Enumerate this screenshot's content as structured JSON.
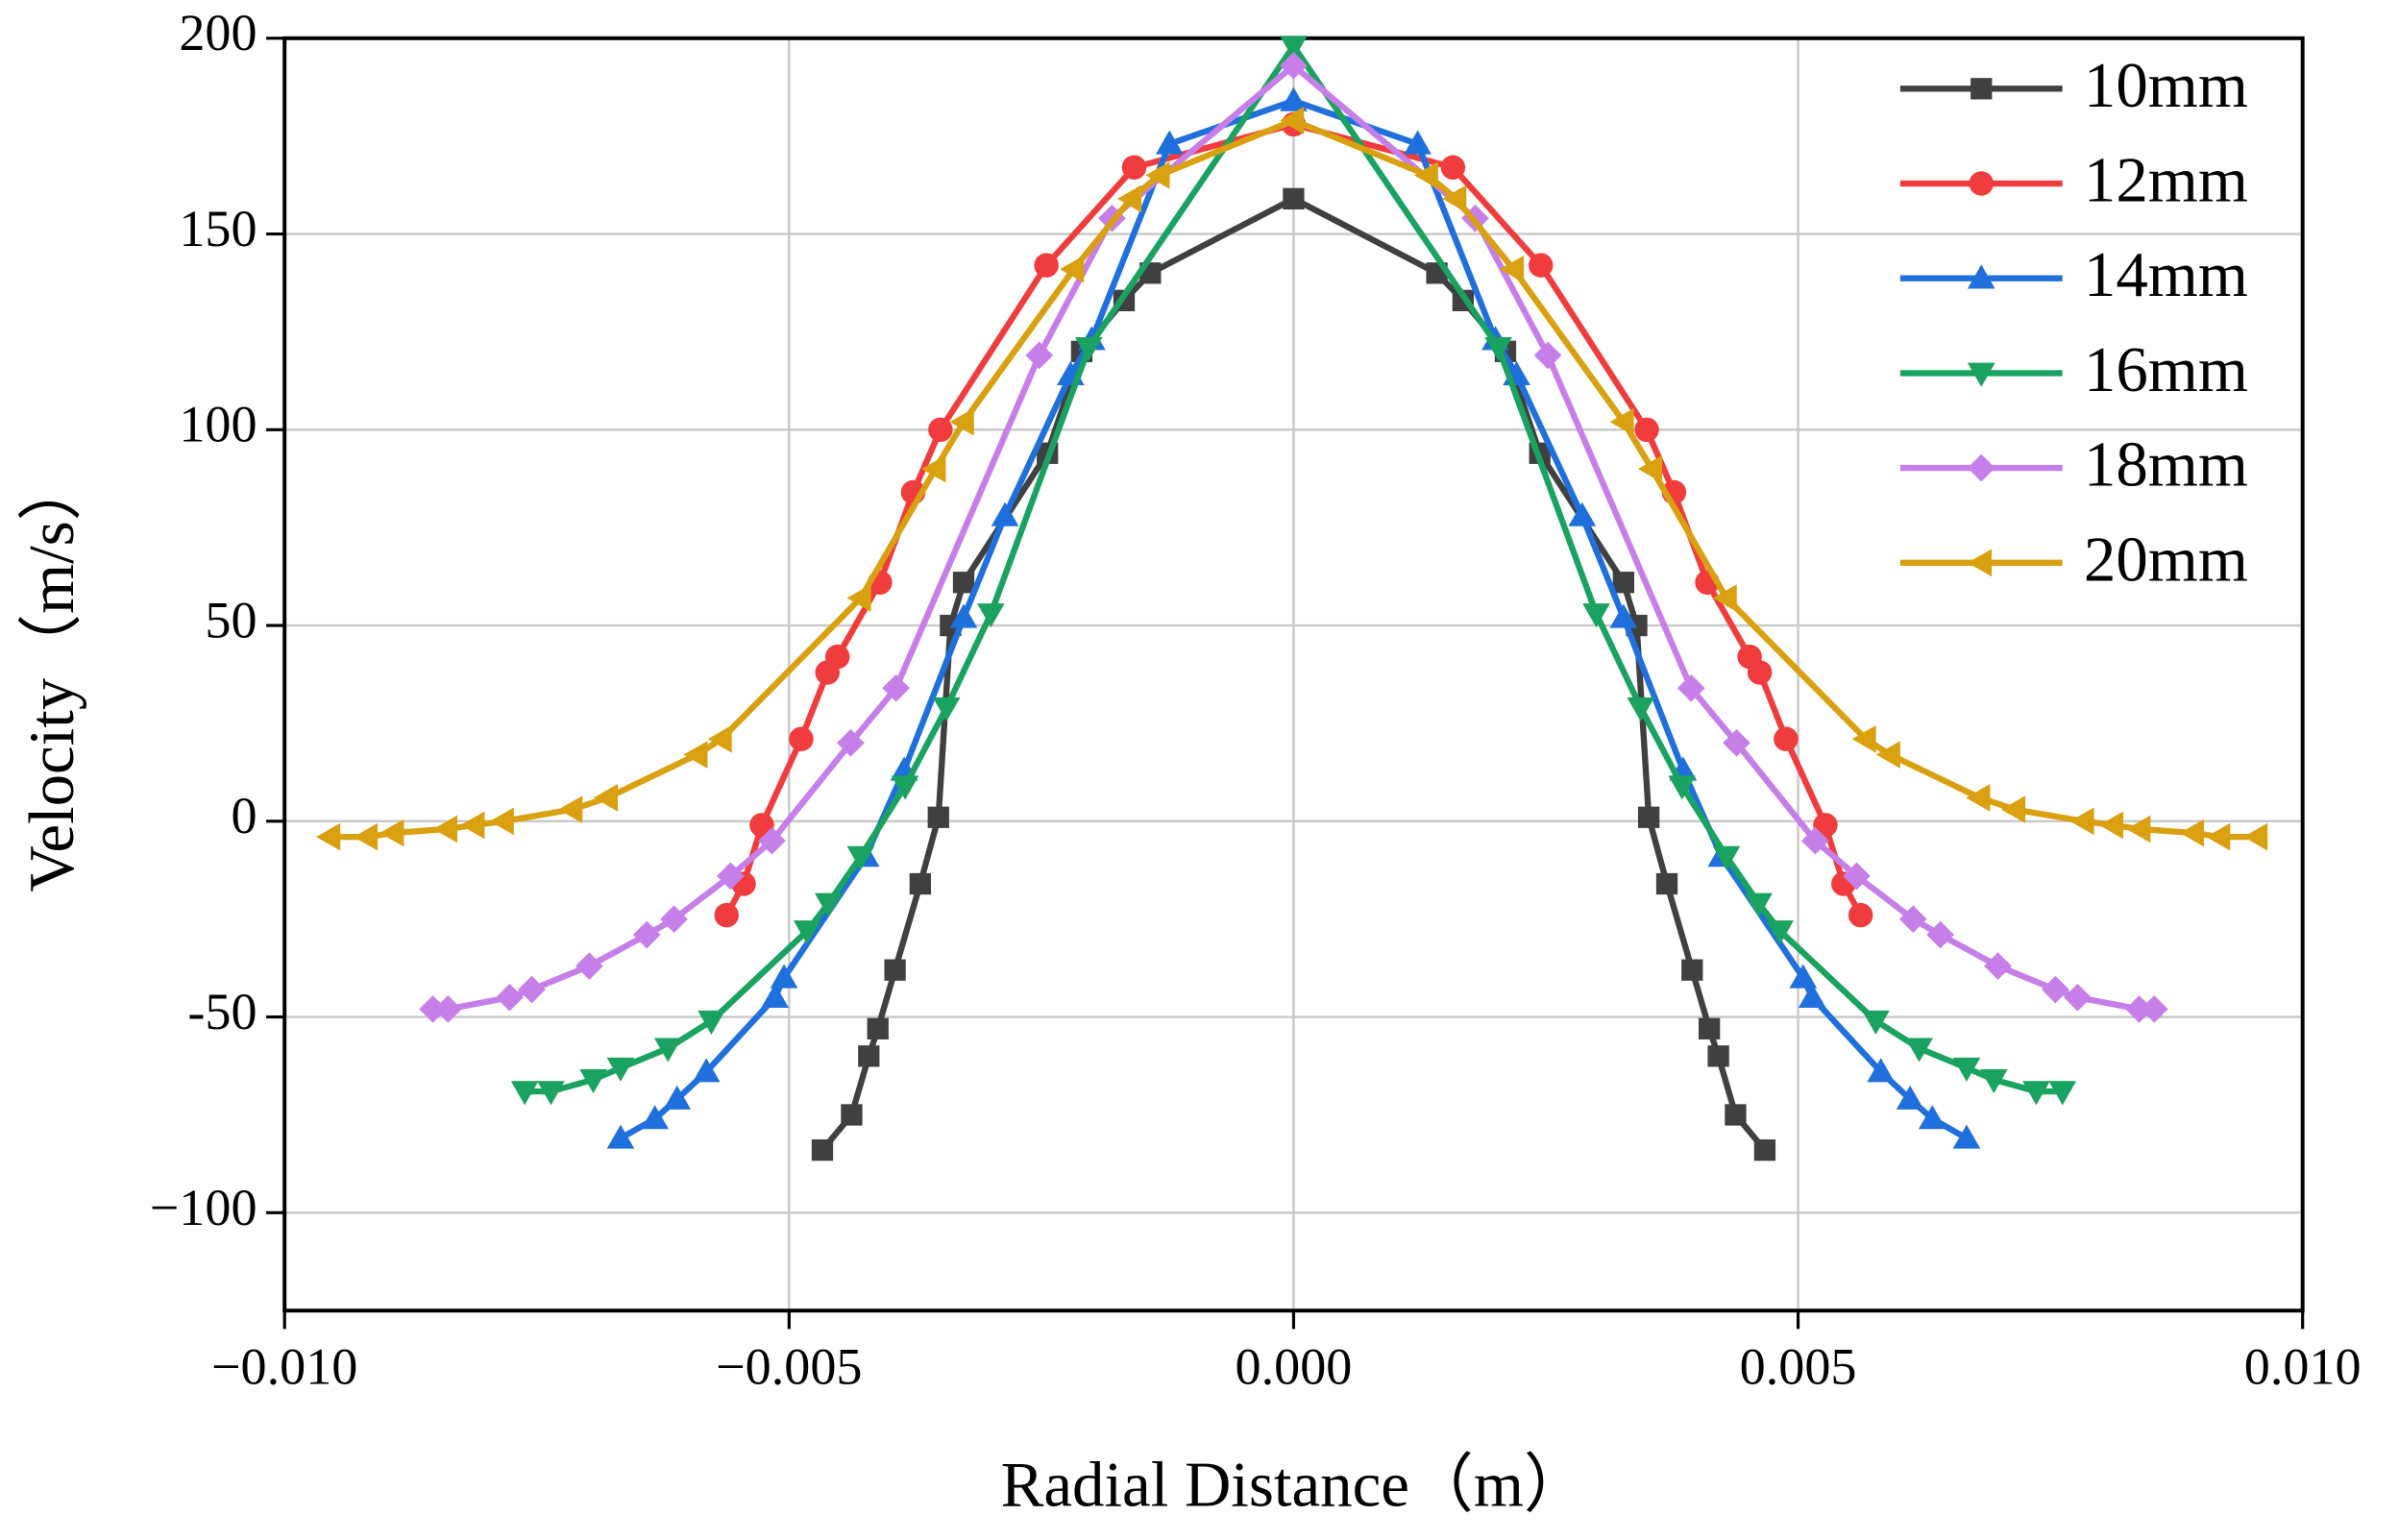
{
  "chart_data": {
    "type": "line",
    "x_label": "Radial Distance（m）",
    "y_label": "Velocity（m/s）",
    "xlim": [
      -0.01,
      0.01
    ],
    "ylim": [
      -125,
      200
    ],
    "xticks": [
      {
        "value": -0.01,
        "label": "−0.010"
      },
      {
        "value": -0.005,
        "label": "−0.005"
      },
      {
        "value": 0,
        "label": "0.000"
      },
      {
        "value": 0.005,
        "label": "0.005"
      },
      {
        "value": 0.01,
        "label": "0.010"
      }
    ],
    "yticks": [
      {
        "value": -100,
        "label": "−100"
      },
      -50,
      0,
      50,
      100,
      150,
      200
    ],
    "grid": true,
    "legend": "top-right",
    "series": [
      {
        "name": "10mm",
        "color": "#404040",
        "marker": "square",
        "x": [
          -0.00467,
          -0.00438,
          -0.00421,
          -0.00412,
          -0.00395,
          -0.0037,
          -0.00352,
          -0.0034,
          -0.00327,
          -0.00244,
          -0.0021,
          -0.00168,
          -0.00142,
          0,
          0.00142,
          0.00168,
          0.0021,
          0.00244,
          0.00327,
          0.0034,
          0.00352,
          0.0037,
          0.00395,
          0.00412,
          0.00421,
          0.00438,
          0.00467
        ],
        "values": [
          -84,
          -75,
          -60,
          -53,
          -38,
          -16,
          1,
          50,
          61,
          94,
          120,
          133,
          140,
          159,
          140,
          133,
          120,
          94,
          61,
          50,
          1,
          -16,
          -38,
          -53,
          -60,
          -75,
          -84
        ]
      },
      {
        "name": "12mm",
        "color": "#f03c3c",
        "marker": "circle",
        "x": [
          -0.00562,
          -0.00545,
          -0.00527,
          -0.00488,
          -0.00462,
          -0.00452,
          -0.0041,
          -0.00377,
          -0.0035,
          -0.00245,
          -0.00158,
          0,
          0.00158,
          0.00245,
          0.0035,
          0.00377,
          0.0041,
          0.00452,
          0.00462,
          0.00488,
          0.00527,
          0.00545,
          0.00562
        ],
        "values": [
          -24,
          -16,
          -1,
          21,
          38,
          42,
          61,
          84,
          100,
          142,
          167,
          178,
          167,
          142,
          100,
          84,
          61,
          42,
          38,
          21,
          -1,
          -16,
          -24
        ]
      },
      {
        "name": "14mm",
        "color": "#1f6fdc",
        "marker": "triangle-up",
        "x": [
          -0.00667,
          -0.00633,
          -0.00611,
          -0.00582,
          -0.00514,
          -0.00505,
          -0.00424,
          -0.00386,
          -0.00327,
          -0.00286,
          -0.00221,
          -0.002,
          -0.00123,
          0,
          0.00123,
          0.002,
          0.00221,
          0.00286,
          0.00327,
          0.00386,
          0.00424,
          0.00505,
          0.00514,
          0.00582,
          0.00611,
          0.00633,
          0.00667
        ],
        "values": [
          -81,
          -76,
          -71,
          -64,
          -45,
          -40,
          -9,
          13,
          52,
          78,
          114,
          123,
          173,
          184,
          173,
          123,
          114,
          78,
          52,
          13,
          -9,
          -40,
          -45,
          -64,
          -71,
          -76,
          -81
        ]
      },
      {
        "name": "16mm",
        "color": "#1aa260",
        "marker": "triangle-down",
        "x": [
          -0.00762,
          -0.00736,
          -0.00694,
          -0.00667,
          -0.0062,
          -0.00577,
          -0.00482,
          -0.00461,
          -0.00429,
          -0.00385,
          -0.00344,
          -0.003,
          -0.00203,
          0,
          0.00203,
          0.003,
          0.00344,
          0.00385,
          0.00429,
          0.00461,
          0.00482,
          0.00577,
          0.0062,
          0.00667,
          0.00694,
          0.00736,
          0.00762
        ],
        "values": [
          -69,
          -69,
          -66,
          -63,
          -58,
          -51,
          -28,
          -21,
          -9,
          9,
          29,
          53,
          121,
          198,
          121,
          53,
          29,
          9,
          -9,
          -21,
          -28,
          -51,
          -58,
          -63,
          -66,
          -69,
          -69
        ]
      },
      {
        "name": "18mm",
        "color": "#c67ee8",
        "marker": "diamond",
        "x": [
          -0.00853,
          -0.00838,
          -0.00777,
          -0.00755,
          -0.00698,
          -0.00641,
          -0.00614,
          -0.00558,
          -0.00517,
          -0.00439,
          -0.00394,
          -0.00252,
          -0.0018,
          0,
          0.0018,
          0.00252,
          0.00394,
          0.00439,
          0.00517,
          0.00558,
          0.00614,
          0.00641,
          0.00698,
          0.00755,
          0.00777,
          0.00838,
          0.00853
        ],
        "values": [
          -48,
          -48,
          -45,
          -43,
          -37,
          -29,
          -25,
          -14,
          -5,
          20,
          34,
          119,
          154,
          193,
          154,
          119,
          34,
          20,
          -5,
          -14,
          -25,
          -29,
          -37,
          -43,
          -45,
          -48,
          -48
        ]
      },
      {
        "name": "20mm",
        "color": "#d9a00f",
        "marker": "triangle-left",
        "x": [
          -0.00955,
          -0.00918,
          -0.00892,
          -0.00839,
          -0.00812,
          -0.00783,
          -0.00715,
          -0.0068,
          -0.00591,
          -0.00567,
          -0.00429,
          -0.00355,
          -0.00327,
          -0.00218,
          -0.00161,
          -0.00133,
          0,
          0.00133,
          0.00161,
          0.00218,
          0.00327,
          0.00355,
          0.00429,
          0.00567,
          0.00591,
          0.0068,
          0.00715,
          0.00783,
          0.00812,
          0.00839,
          0.00892,
          0.00918,
          0.00955
        ],
        "values": [
          -4,
          -4,
          -3,
          -2,
          -1,
          0,
          3,
          6,
          17,
          21,
          57,
          90,
          102,
          141,
          159,
          165,
          179,
          165,
          159,
          141,
          102,
          90,
          57,
          21,
          17,
          6,
          3,
          0,
          -1,
          -2,
          -3,
          -4,
          -4
        ]
      }
    ]
  }
}
